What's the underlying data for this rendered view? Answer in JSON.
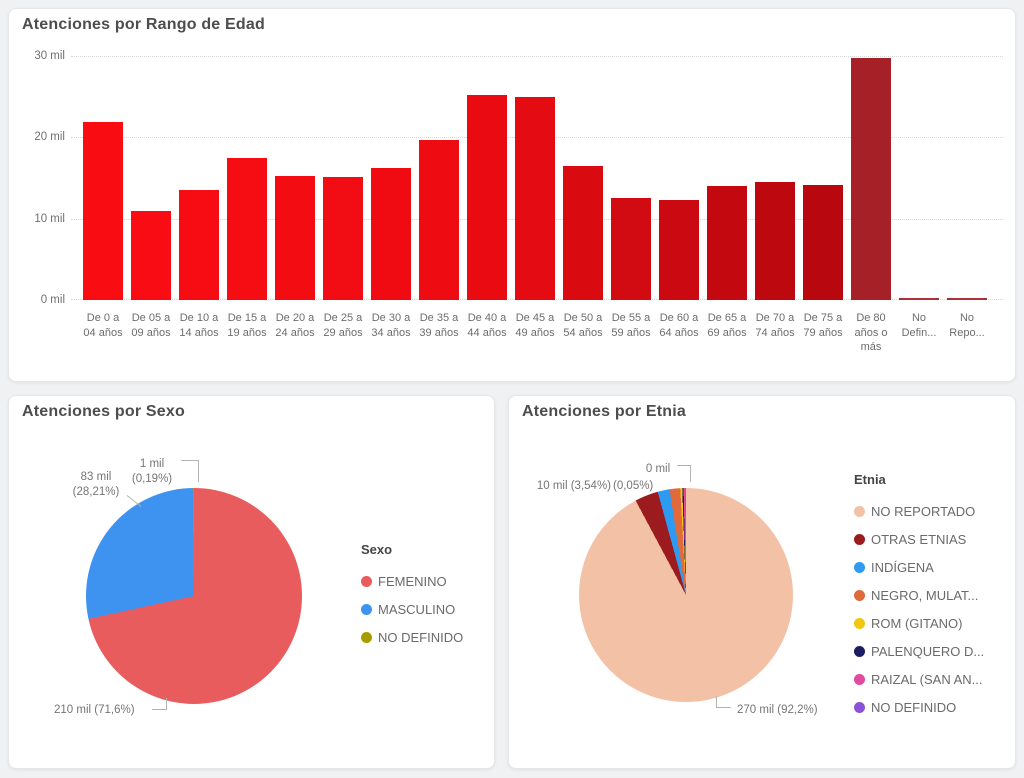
{
  "page": {
    "background": "#f0f1f2",
    "card_background": "#ffffff"
  },
  "chart_data": [
    {
      "id": "atenciones-rango-edad",
      "type": "bar",
      "title": "Atenciones por Rango de Edad",
      "unit": "mil",
      "ylim": [
        0,
        30
      ],
      "y_ticks": [
        "30 mil",
        "20 mil",
        "10 mil",
        "0 mil"
      ],
      "grid": "dotted-horizontal",
      "legend_position": "none",
      "categories": [
        "De 0 a 04 años",
        "De 05 a 09 años",
        "De 10 a 14 años",
        "De 15 a 19 años",
        "De 20 a 24 años",
        "De 25 a 29 años",
        "De 30 a 34 años",
        "De 35 a 39 años",
        "De 40 a 44 años",
        "De 45 a 49 años",
        "De 50 a 54 años",
        "De 55 a 59 años",
        "De 60 a 64 años",
        "De 65 a 69 años",
        "De 70 a 74 años",
        "De 75 a 79 años",
        "De 80 años o más",
        "No Defin...",
        "No Repo..."
      ],
      "values": [
        21.9,
        10.9,
        13.5,
        17.5,
        15.3,
        15.1,
        16.2,
        19.7,
        25.2,
        25.0,
        16.5,
        12.6,
        12.3,
        14.0,
        14.5,
        14.1,
        29.7,
        0.25,
        0.25
      ],
      "bar_colors": [
        "#fa0c13",
        "#f90c13",
        "#f70c13",
        "#f60c13",
        "#f40c13",
        "#f20c13",
        "#f00b13",
        "#ee0b12",
        "#ea0b12",
        "#e50b12",
        "#da0a11",
        "#d20a11",
        "#cb0910",
        "#c30810",
        "#bd080f",
        "#b9070f",
        "#a62127",
        "#a73339",
        "#a73339"
      ]
    },
    {
      "id": "atenciones-sexo",
      "type": "pie",
      "title": "Atenciones por Sexo",
      "legend_title": "Sexo",
      "legend_position": "right",
      "slices": [
        {
          "label": "FEMENINO",
          "pct": 71.6,
          "value_label": "210 mil (71,6%)",
          "color": "#e85c5e"
        },
        {
          "label": "MASCULINO",
          "pct": 28.21,
          "value_label": "83 mil (28,21%)",
          "color": "#3e93f0"
        },
        {
          "label": "NO DEFINIDO",
          "pct": 0.19,
          "value_label": "1 mil (0,19%)",
          "color": "#a79b00"
        }
      ],
      "callouts": {
        "top": {
          "line1": "1 mil",
          "line2": "(0,19%)"
        },
        "left": {
          "line1": "83 mil",
          "line2": "(28,21%)"
        },
        "bottom": {
          "line1": "210 mil (71,6%)"
        }
      }
    },
    {
      "id": "atenciones-etnia",
      "type": "pie",
      "title": "Atenciones por Etnia",
      "legend_title": "Etnia",
      "legend_position": "right",
      "slices": [
        {
          "label": "NO REPORTADO",
          "pct": 92.2,
          "value_label": "270 mil (92,2%)",
          "color": "#f3c2a6"
        },
        {
          "label": "OTRAS ETNIAS",
          "pct": 3.54,
          "value_label": "10 mil (3,54%)",
          "color": "#9b1b1e"
        },
        {
          "label": "INDÍGENA",
          "pct": 1.8,
          "color": "#2e9af2"
        },
        {
          "label": "NEGRO, MULAT...",
          "pct": 1.6,
          "color": "#e06a3c"
        },
        {
          "label": "ROM (GITANO)",
          "pct": 0.3,
          "color": "#f2c80f"
        },
        {
          "label": "PALENQUERO D...",
          "pct": 0.2,
          "color": "#1b1c62"
        },
        {
          "label": "RAIZAL (SAN AN...",
          "pct": 0.31,
          "color": "#e2499f"
        },
        {
          "label": "NO DEFINIDO",
          "pct": 0.05,
          "value_label": "0 mil (0,05%)",
          "color": "#8a53d6"
        }
      ],
      "callouts": {
        "top_left": {
          "line1": "10 mil (3,54%)"
        },
        "top_right": {
          "line1": "0 mil",
          "line2": "(0,05%)"
        },
        "bottom": {
          "line1": "270 mil (92,2%)"
        }
      }
    }
  ]
}
